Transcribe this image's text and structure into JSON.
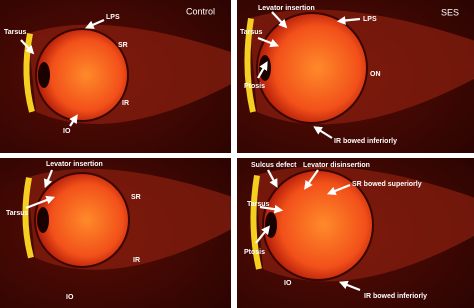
{
  "panels": [
    {
      "title": "Control",
      "labels": [
        "Tarsus",
        "LPS",
        "SR",
        "IR",
        "IO"
      ]
    },
    {
      "title": "SES",
      "labels": [
        "Levator insertion",
        "LPS",
        "Tarsus",
        "ON",
        "Ptosis",
        "IR bowed inferiorly"
      ]
    },
    {
      "labels": [
        "Levator insertion",
        "Tarsus",
        "SR",
        "IR",
        "IO"
      ]
    },
    {
      "labels": [
        "Sulcus defect",
        "Levator disinsertion",
        "SR bowed superiorly",
        "Tarsus",
        "Ptosis",
        "IO",
        "IR bowed inferiorly"
      ]
    }
  ]
}
